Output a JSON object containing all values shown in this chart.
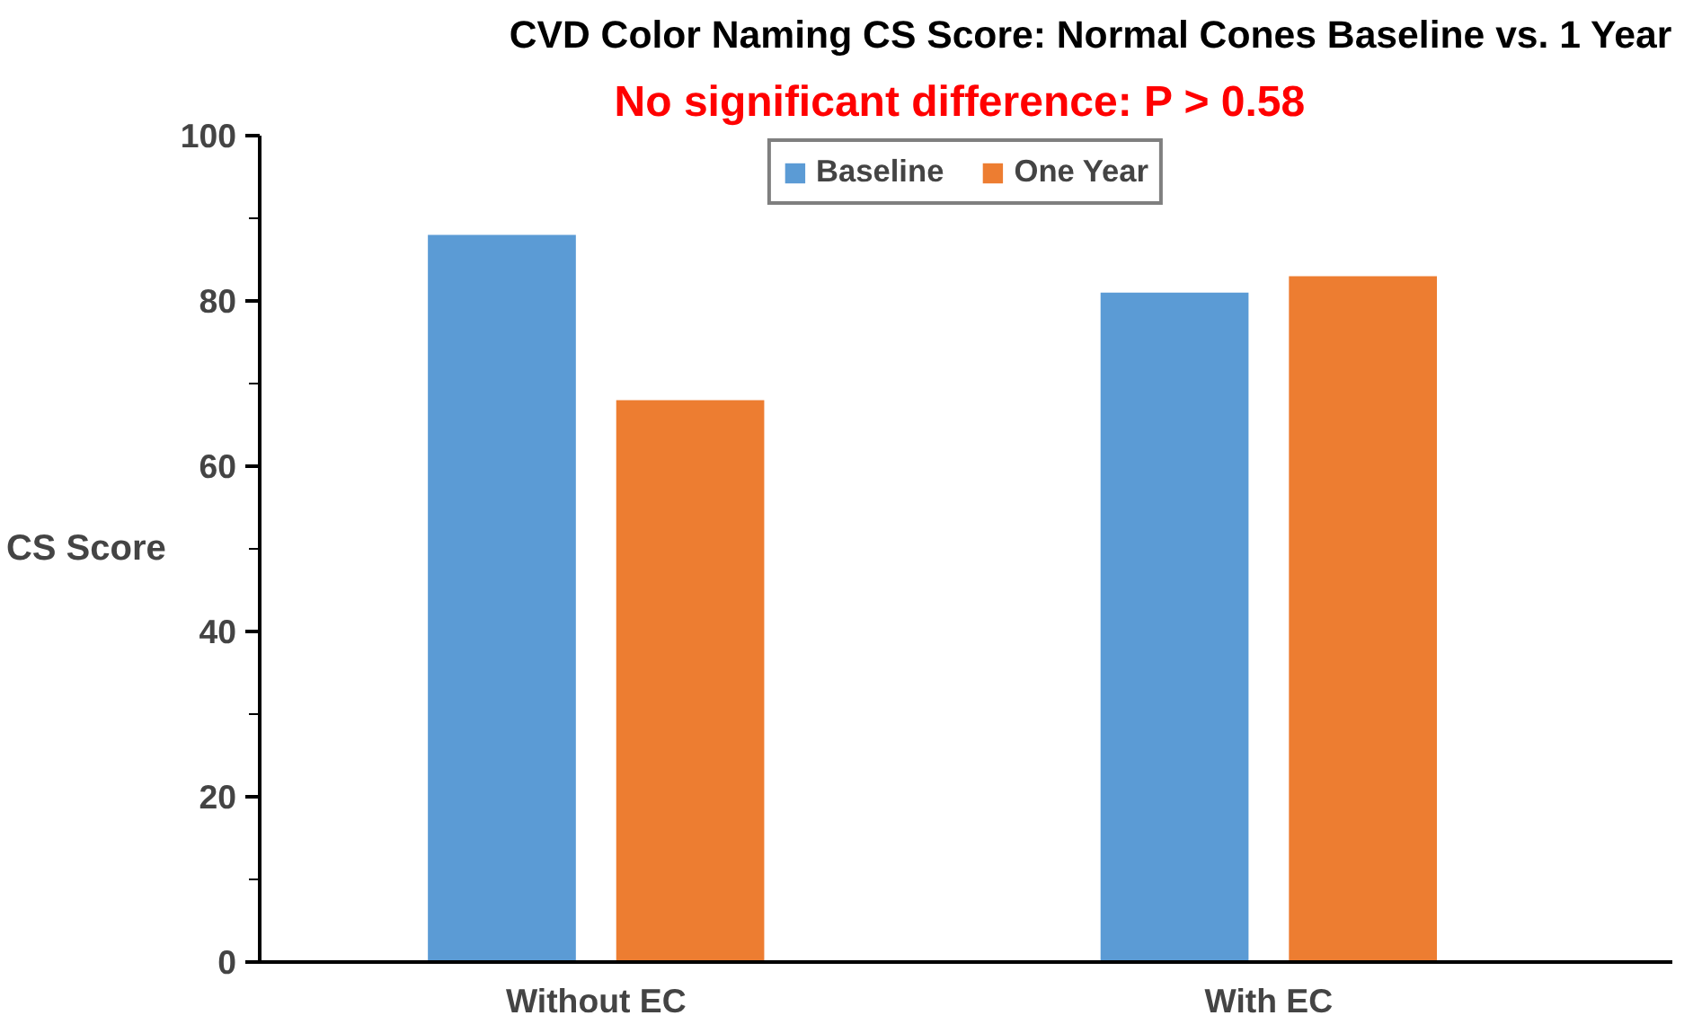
{
  "chart_data": {
    "type": "bar",
    "title": "CVD Color Naming CS Score: Normal Cones Baseline vs. 1 Year",
    "subtitle": "No significant difference:  P > 0.58",
    "ylabel": "CS Score",
    "categories": [
      "Without EC",
      "With EC"
    ],
    "series": [
      {
        "name": "Baseline",
        "color": "#5b9bd5",
        "values": [
          88,
          81
        ]
      },
      {
        "name": "One Year",
        "color": "#ed7d31",
        "values": [
          68,
          83
        ]
      }
    ],
    "ylim": [
      0,
      100
    ],
    "yticks": [
      0,
      {
        "value": 10,
        "label": null
      },
      20,
      {
        "value": 30,
        "label": null
      },
      40,
      {
        "value": 50,
        "label": null
      },
      60,
      {
        "value": 70,
        "label": null
      },
      80,
      {
        "value": 90,
        "label": null
      },
      100
    ],
    "grid": false,
    "legend": "top"
  }
}
